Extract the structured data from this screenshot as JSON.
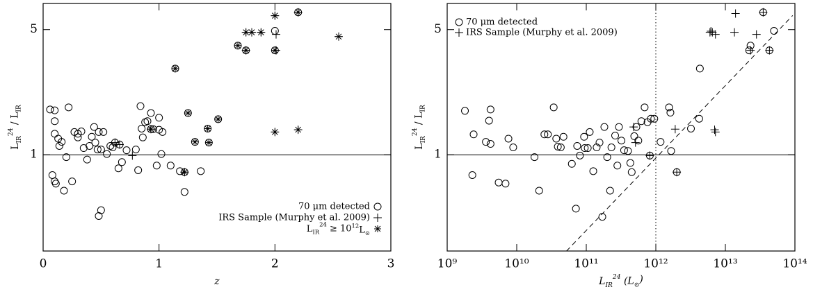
{
  "chart_data": [
    {
      "type": "scatter",
      "xlabel": "z",
      "ylabel": "L_{IR}^{24} / L_{IR}",
      "xlim": [
        0,
        3
      ],
      "xticks": [
        0,
        1,
        2,
        3
      ],
      "ylim": [
        0.29,
        7.0
      ],
      "yticks": [
        1,
        5
      ],
      "yscale": "log",
      "hline": 1,
      "legend": "lower right",
      "series": [
        {
          "name": "70 μm detected",
          "marker": "circle",
          "x": [
            0.06,
            0.1,
            0.1,
            0.1,
            0.13,
            0.14,
            0.16,
            0.2,
            0.22,
            0.08,
            0.1,
            0.11,
            0.18,
            0.25,
            0.27,
            0.3,
            0.3,
            0.33,
            0.35,
            0.38,
            0.4,
            0.42,
            0.44,
            0.45,
            0.47,
            0.48,
            0.48,
            0.5,
            0.5,
            0.52,
            0.55,
            0.58,
            0.6,
            0.65,
            0.68,
            0.72,
            0.8,
            0.82,
            0.84,
            0.85,
            0.86,
            0.88,
            0.9,
            0.93,
            0.95,
            1.0,
            1.0,
            0.98,
            1.02,
            1.03,
            1.1,
            1.18,
            1.22,
            1.36,
            0.62,
            0.66,
            0.93,
            1.22,
            1.14,
            1.25,
            1.31,
            1.42,
            1.43,
            1.51,
            1.68,
            1.75,
            2.0,
            2.0,
            2.2
          ],
          "values": [
            1.79,
            1.77,
            1.54,
            1.31,
            1.23,
            1.12,
            1.18,
            0.97,
            1.84,
            0.77,
            0.71,
            0.69,
            0.63,
            0.71,
            1.34,
            1.31,
            1.25,
            1.35,
            1.09,
            0.94,
            1.12,
            1.26,
            1.43,
            1.17,
            1.07,
            1.34,
            0.455,
            0.49,
            1.07,
            1.34,
            1.01,
            1.12,
            1.1,
            0.84,
            0.91,
            1.06,
            1.07,
            0.82,
            1.87,
            1.4,
            1.25,
            1.52,
            1.54,
            1.71,
            1.39,
            1.61,
            1.38,
            0.87,
            1.01,
            1.34,
            0.87,
            0.81,
            0.62,
            0.81,
            1.17,
            1.14,
            1.39,
            0.8,
            3.03,
            1.71,
            1.18,
            1.4,
            1.17,
            1.58,
            4.07,
            3.83,
            3.83,
            4.92,
            6.25
          ]
        },
        {
          "name": "IRS Sample (Murphy et al. 2009)",
          "marker": "plus",
          "x": [
            0.62,
            0.66,
            0.77,
            0.93,
            1.22,
            2.0,
            2.2,
            1.75,
            1.8,
            1.88,
            2.0,
            2.2,
            2.55,
            2.01,
            1.75,
            2.01
          ],
          "values": [
            1.17,
            1.14,
            0.99,
            1.39,
            0.8,
            1.34,
            1.38,
            4.83,
            4.83,
            4.83,
            5.98,
            6.25,
            4.57,
            4.7,
            3.83,
            3.83
          ]
        },
        {
          "name": "L_{IR}^{24} ≥ 10^{12}L_{⊙}",
          "marker": "asterisk",
          "x": [
            1.14,
            1.25,
            1.31,
            1.42,
            1.43,
            1.51,
            1.68,
            1.75,
            1.8,
            1.88,
            1.75,
            2.0,
            2.0,
            2.2,
            2.55,
            2.0,
            2.2,
            1.22,
            0.93
          ],
          "values": [
            3.03,
            1.71,
            1.18,
            1.4,
            1.17,
            1.58,
            4.07,
            4.83,
            4.83,
            4.83,
            3.83,
            3.83,
            5.98,
            6.25,
            4.57,
            1.34,
            1.38,
            0.8,
            1.39
          ]
        }
      ]
    },
    {
      "type": "scatter",
      "xlabel": "L_{IR}^{24}  (L_{⊙})",
      "ylabel": "L_{IR}^{24} / L_{IR}",
      "xlim": [
        1000000000.0,
        100000000000000.0
      ],
      "xscale": "log",
      "xticks": [
        {
          "value": 1000000000.0,
          "label": "10⁹"
        },
        {
          "value": 10000000000.0,
          "label": "10¹⁰"
        },
        {
          "value": 100000000000.0,
          "label": "10¹¹"
        },
        {
          "value": 1000000000000.0,
          "label": "10¹²"
        },
        {
          "value": 10000000000000.0,
          "label": "10¹³"
        },
        {
          "value": 100000000000000.0,
          "label": "10¹⁴"
        }
      ],
      "ylim": [
        0.29,
        7.0
      ],
      "yticks": [
        1,
        5
      ],
      "yscale": "log",
      "hline": 1,
      "vline": 1000000000000.0,
      "diagonal": {
        "x": [
          52000000000.0,
          93000000000000.0
        ],
        "y": [
          0.29,
          6.0
        ]
      },
      "legend": "upper left",
      "series": [
        {
          "name": "70 μm detected",
          "marker": "circle",
          "x": [
            1800000000.0,
            2400000000.0,
            2300000000.0,
            3600000000.0,
            4200000000.0,
            4000000000.0,
            4200000000.0,
            5500000000.0,
            6900000000.0,
            7600000000.0,
            8900000000.0,
            18000000000.0,
            21000000000.0,
            25000000000.0,
            28000000000.0,
            34000000000.0,
            37000000000.0,
            39000000000.0,
            43000000000.0,
            47000000000.0,
            62000000000.0,
            71000000000.0,
            74000000000.0,
            81000000000.0,
            95000000000.0,
            93000000000.0,
            105000000000.0,
            112000000000.0,
            126000000000.0,
            141000000000.0,
            155000000000.0,
            170000000000.0,
            182000000000.0,
            200000000000.0,
            220000000000.0,
            230000000000.0,
            260000000000.0,
            280000000000.0,
            295000000000.0,
            320000000000.0,
            350000000000.0,
            398000000000.0,
            430000000000.0,
            450000000000.0,
            490000000000.0,
            525000000000.0,
            560000000000.0,
            620000000000.0,
            690000000000.0,
            760000000000.0,
            850000000000.0,
            950000000000.0,
            1170000000000.0,
            1550000000000.0,
            1620000000000.0,
            1660000000000.0,
            3200000000000.0,
            4200000000000.0,
            4300000000000.0,
            23000000000000.0,
            50000000000000.0,
            22000000000000.0,
            43000000000000.0,
            35000000000000.0,
            2000000000000.0,
            820000000000.0
          ],
          "values": [
            1.76,
            1.3,
            0.77,
            1.18,
            1.15,
            1.55,
            1.79,
            0.7,
            0.69,
            1.23,
            1.1,
            0.97,
            0.63,
            1.3,
            1.3,
            1.84,
            1.23,
            1.11,
            1.1,
            1.26,
            0.89,
            0.5,
            1.12,
            0.99,
            1.09,
            1.26,
            1.09,
            1.34,
            0.81,
            1.1,
            1.17,
            0.45,
            1.43,
            0.97,
            0.63,
            1.1,
            1.28,
            0.87,
            1.43,
            1.2,
            1.06,
            1.05,
            0.9,
            0.8,
            1.27,
            1.43,
            1.2,
            1.54,
            1.84,
            1.52,
            1.59,
            1.59,
            1.18,
            1.84,
            1.72,
            1.05,
            1.4,
            1.59,
            3.03,
            4.07,
            4.92,
            3.83,
            3.83,
            6.25,
            0.8,
            0.99
          ]
        },
        {
          "name": "IRS Sample (Murphy et al. 2009)",
          "marker": "plus",
          "x": [
            480000000000.0,
            510000000000.0,
            820000000000.0,
            1900000000000.0,
            2000000000000.0,
            7000000000000.0,
            7200000000000.0,
            6000000000000.0,
            6500000000000.0,
            7200000000000.0,
            13500000000000.0,
            14000000000000.0,
            28000000000000.0,
            35000000000000.0,
            43000000000000.0,
            23000000000000.0,
            6200000000000.0
          ],
          "values": [
            1.43,
            1.17,
            0.99,
            1.39,
            0.8,
            1.38,
            1.34,
            4.83,
            4.83,
            4.7,
            4.83,
            6.15,
            4.7,
            6.25,
            3.83,
            3.83,
            4.9
          ]
        }
      ]
    }
  ]
}
